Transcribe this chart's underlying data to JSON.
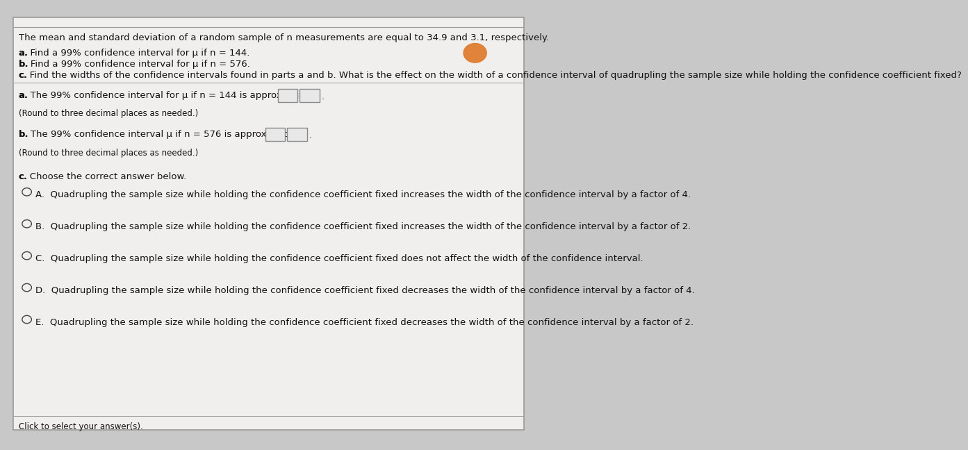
{
  "bg_color": "#c8c8c8",
  "panel_color": "#f0efed",
  "panel_border_color": "#999999",
  "title_text": "The mean and standard deviation of a random sample of n measurements are equal to 34.9 and 3.1, respectively.",
  "line_a": "a. Find a 99% confidence interval for μ if n = 144.",
  "line_b": "b. Find a 99% confidence interval for μ if n = 576.",
  "line_c": "c. Find the widths of the confidence intervals found in parts a and b. What is the effect on the width of a confidence interval of quadrupling the sample size while holding the confidence coefficient fixed?",
  "answer_a_prefix": "a. The 99% confidence interval for μ if n = 144 is approximately",
  "answer_a_sub": "(Round to three decimal places as needed.)",
  "answer_b_prefix": "b. The 99% confidence interval μ if n = 576 is approximately",
  "answer_b_sub": "(Round to three decimal places as needed.)",
  "part_c_header": "c. Choose the correct answer below.",
  "option_texts": [
    "Quadrupling the sample size while holding the confidence coefficient fixed increases the width of the confidence interval by a factor of 4.",
    "Quadrupling the sample size while holding the confidence coefficient fixed increases the width of the confidence interval by a factor of 2.",
    "Quadrupling the sample size while holding the confidence coefficient fixed does not affect the width of the confidence interval.",
    "Quadrupling the sample size while holding the confidence coefficient fixed decreases the width of the confidence interval by a factor of 4.",
    "Quadrupling the sample size while holding the confidence coefficient fixed decreases the width of the confidence interval by a factor of 2."
  ],
  "option_labels": [
    "A.",
    "B.",
    "C.",
    "D.",
    "E."
  ],
  "footer_text": "Click to select your answer(s).",
  "font_size_main": 9.5,
  "font_size_small": 8.5,
  "text_color": "#111111",
  "circle_color": "#444444",
  "input_box_color": "#e8e8e8",
  "input_box_border": "#888888"
}
